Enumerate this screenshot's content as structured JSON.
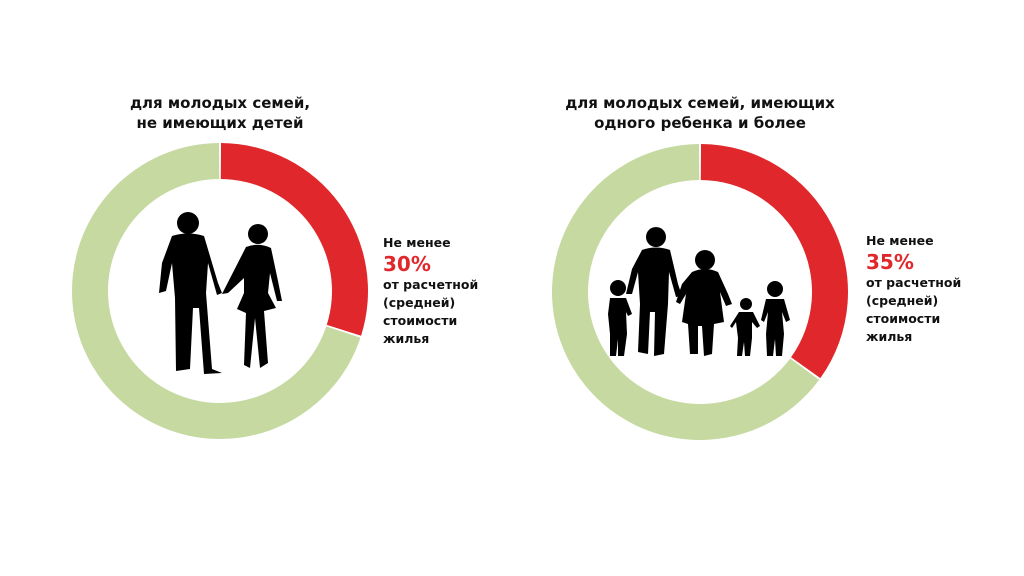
{
  "chart_data": [
    {
      "type": "pie",
      "title_lines": [
        "для молодых семей,",
        "не имеющих детей"
      ],
      "values": [
        30,
        70
      ],
      "colors": [
        "#e0282c",
        "#c5d9a0"
      ],
      "annotation": {
        "prefix": "Не менее",
        "value_label": "30%",
        "suffix_lines": [
          "от расчетной",
          "(средней)",
          "стоимости",
          "жилья"
        ]
      },
      "icon": "couple-silhouette-icon"
    },
    {
      "type": "pie",
      "title_lines": [
        "для молодых семей, имеющих",
        "одного ребенка и более"
      ],
      "values": [
        35,
        65
      ],
      "colors": [
        "#e0282c",
        "#c5d9a0"
      ],
      "annotation": {
        "prefix": "Не менее",
        "value_label": "35%",
        "suffix_lines": [
          "от расчетной",
          "(средней)",
          "стоимости",
          "жилья"
        ]
      },
      "icon": "family-silhouette-icon"
    }
  ]
}
